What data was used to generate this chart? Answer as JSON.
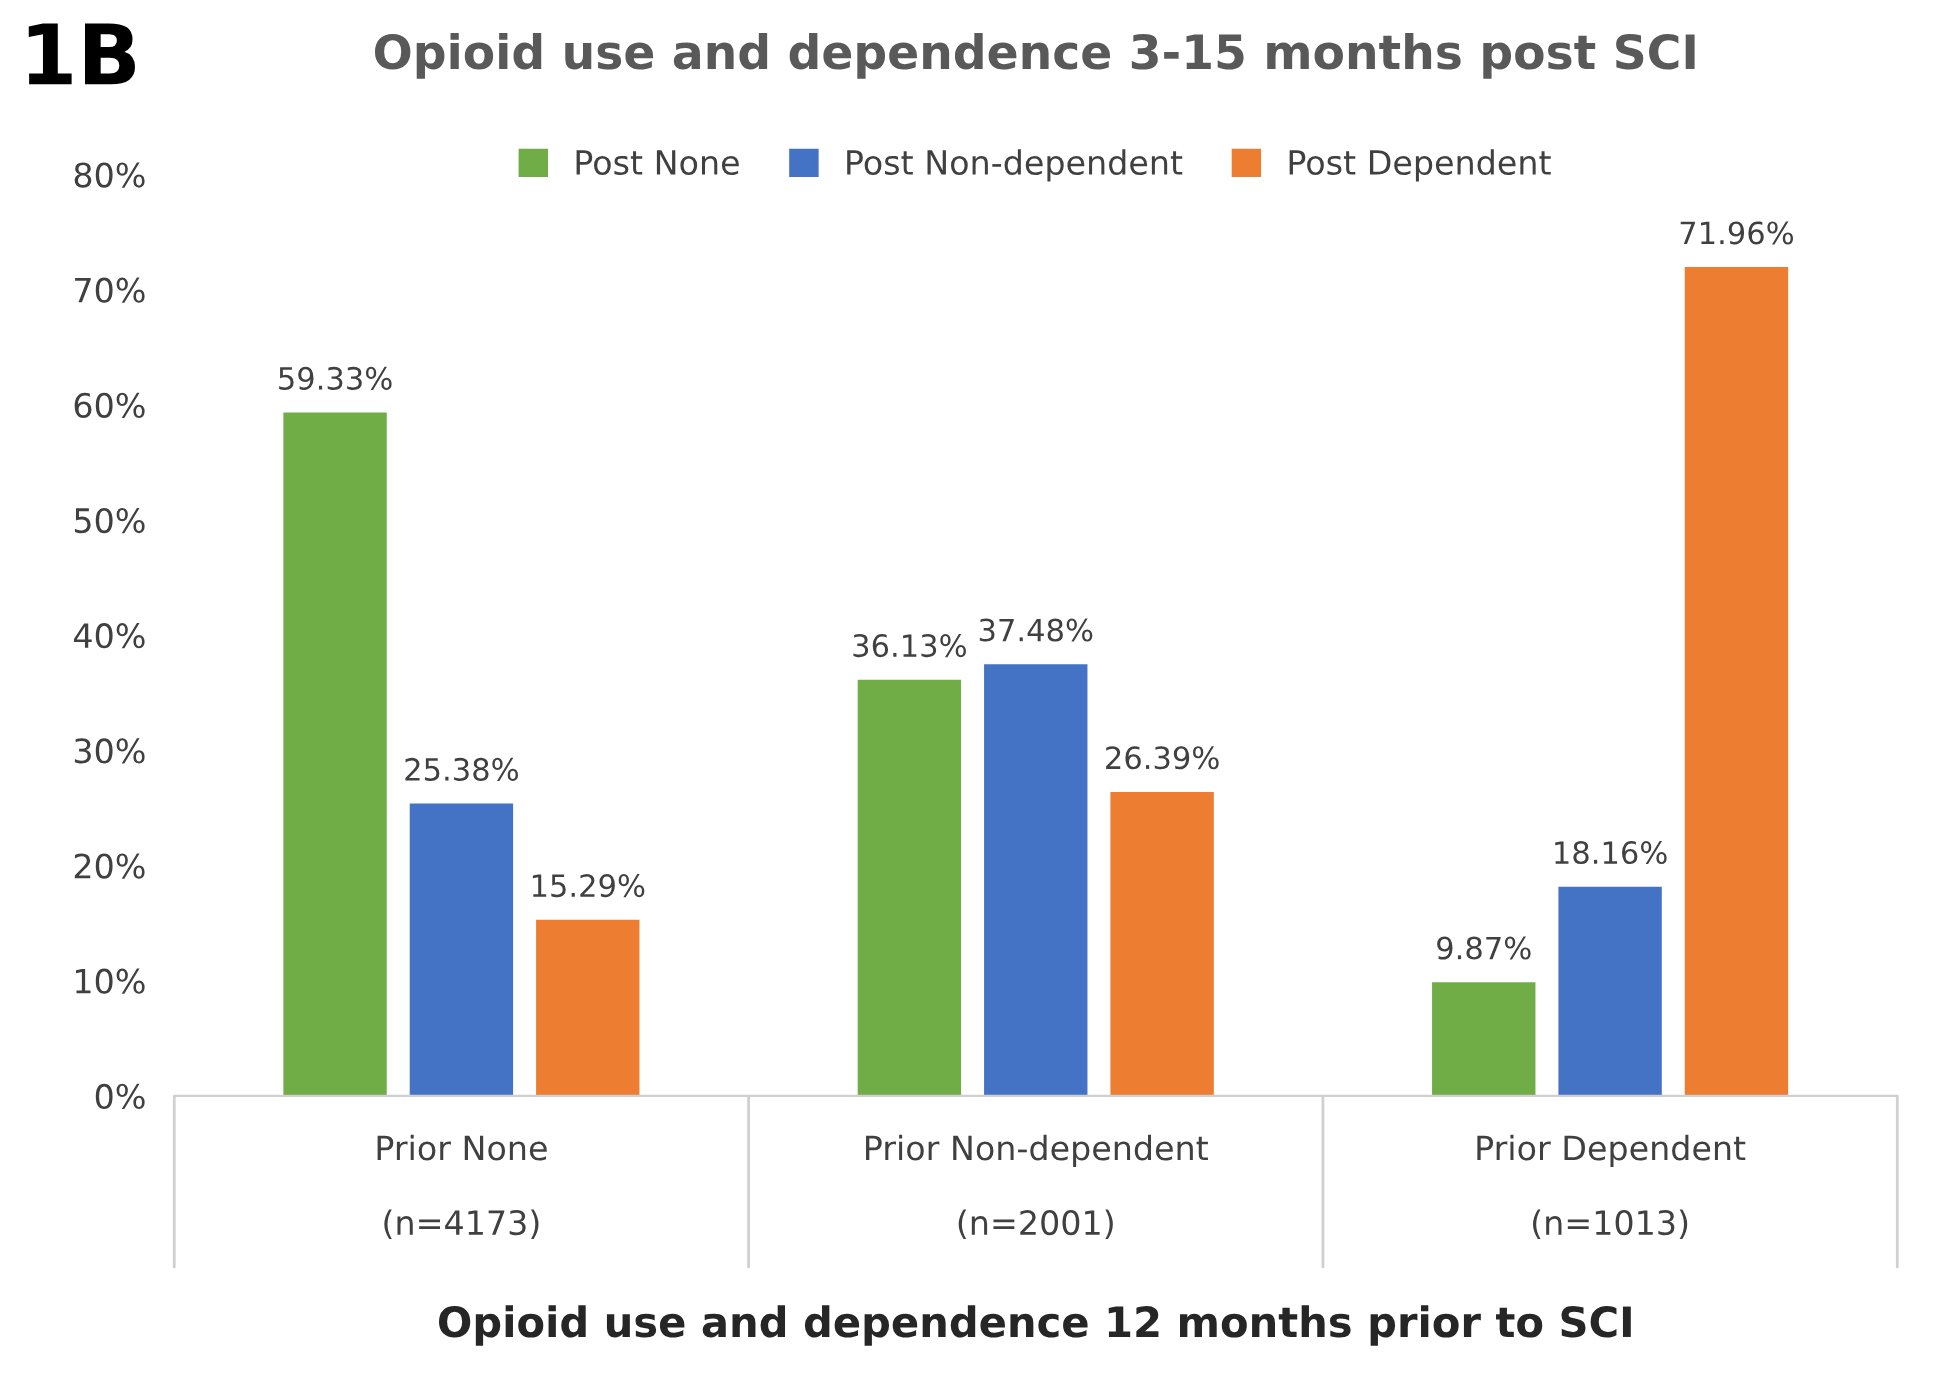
{
  "chart_data": {
    "type": "bar",
    "title": "Opioid use and dependence 3-15 months post SCI",
    "xlabel": "Opioid use and dependence 12 months prior to SCI",
    "annotations": [
      "1B"
    ],
    "categories": [
      "Prior None\n\n(n=4173)",
      "Prior Non-dependent\n\n(n=2001)",
      "Prior Dependent\n\n(n=1013)"
    ],
    "series": [
      {
        "name": "Post None",
        "color": "#70ad47",
        "values": [
          59.33,
          36.13,
          9.87
        ],
        "value_labels": [
          "59.33%",
          "36.13%",
          "9.87%"
        ]
      },
      {
        "name": "Post Non-dependent",
        "color": "#4472c4",
        "values": [
          25.38,
          37.48,
          18.16
        ],
        "value_labels": [
          "25.38%",
          "37.48%",
          "18.16%"
        ]
      },
      {
        "name": "Post Dependent",
        "color": "#ed7d31",
        "values": [
          15.29,
          26.39,
          71.96
        ],
        "value_labels": [
          "15.29%",
          "26.39%",
          "71.96%"
        ]
      }
    ],
    "ylim": [
      0,
      80
    ],
    "yticks": [
      {
        "value": 0,
        "label": "0%"
      },
      {
        "value": 10,
        "label": "10%"
      },
      {
        "value": 20,
        "label": "20%"
      },
      {
        "value": 30,
        "label": "30%"
      },
      {
        "value": 40,
        "label": "40%"
      },
      {
        "value": 50,
        "label": "50%"
      },
      {
        "value": 60,
        "label": "60%"
      },
      {
        "value": 70,
        "label": "70%"
      },
      {
        "value": 80,
        "label": "80%"
      }
    ],
    "grid": false,
    "legend": "top"
  }
}
